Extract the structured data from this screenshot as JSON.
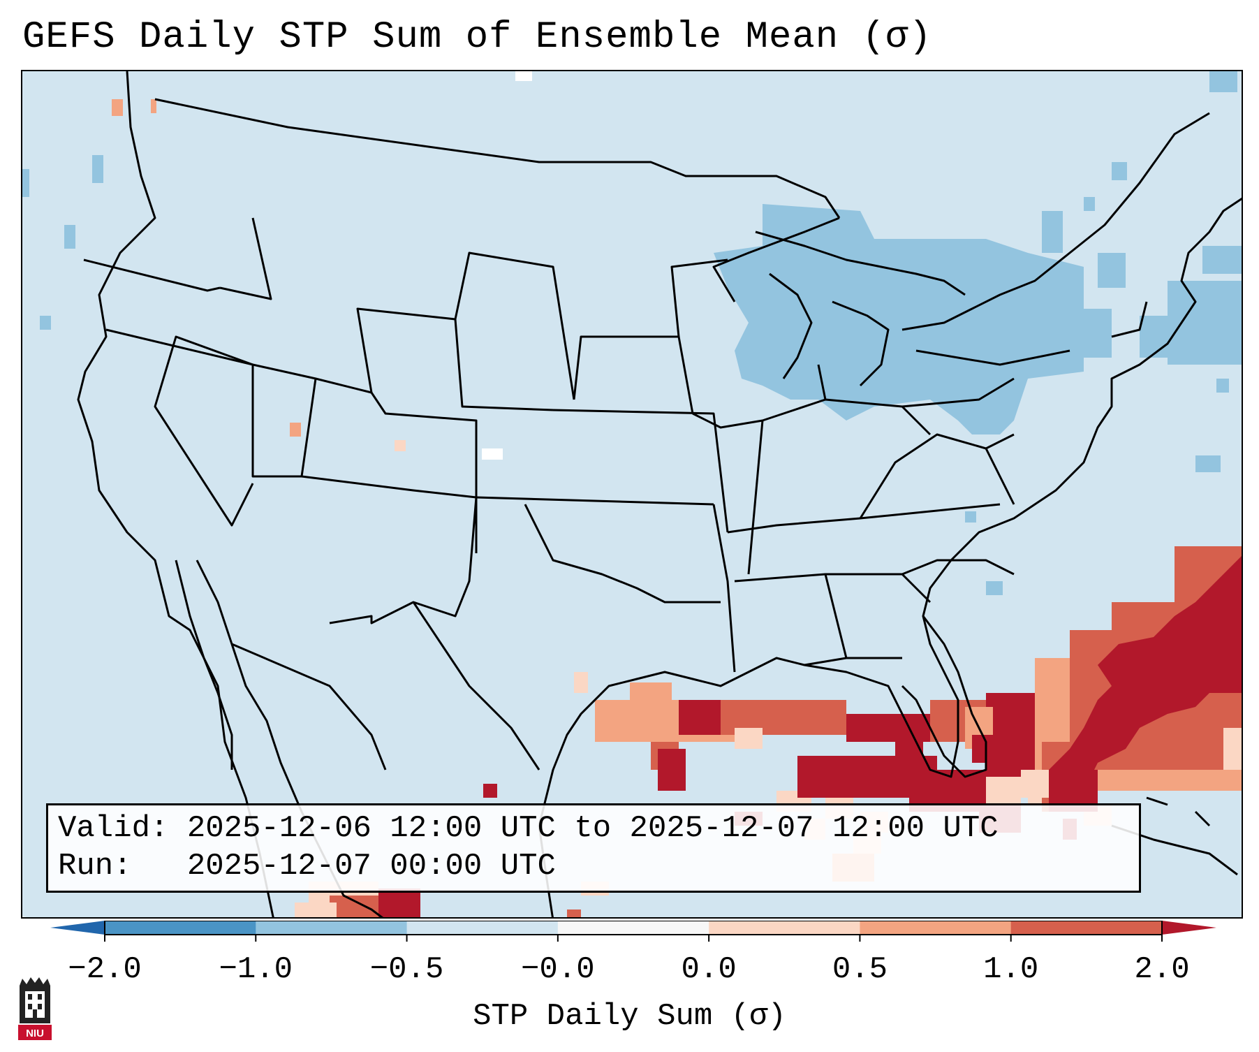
{
  "title": "GEFS Daily STP Sum of Ensemble Mean (σ)",
  "info": {
    "valid_label": "Valid:",
    "valid_value": "2025-12-06 12:00 UTC to 2025-12-07 12:00 UTC",
    "run_label": "Run:",
    "run_value": "2025-12-07 00:00 UTC"
  },
  "colorbar": {
    "label": "STP Daily Sum (σ)",
    "ticks": [
      "−2.0",
      "−1.0",
      "−0.5",
      "−0.0",
      "0.0",
      "0.5",
      "1.0",
      "2.0"
    ],
    "bins": [
      {
        "from": -2.0,
        "to": -1.0,
        "color": "#4a94c5"
      },
      {
        "from": -1.0,
        "to": -0.5,
        "color": "#93c4df"
      },
      {
        "from": -0.5,
        "to": -0.0,
        "color": "#d2e5f0"
      },
      {
        "from": -0.0,
        "to": 0.0,
        "color": "#f7f7f7"
      },
      {
        "from": 0.0,
        "to": 0.5,
        "color": "#fbd7c4"
      },
      {
        "from": 0.5,
        "to": 1.0,
        "color": "#f3a481"
      },
      {
        "from": 1.0,
        "to": 2.0,
        "color": "#d6604d"
      }
    ],
    "under_color": "#2166ac",
    "over_color": "#b2182b"
  },
  "map": {
    "projection": "lambert-conformal CONUS",
    "background_color": "#d2e5f0",
    "field_regions": [
      {
        "region": "great-lakes-northeast",
        "level": "-1.0 to -0.5",
        "color": "#93c4df"
      },
      {
        "region": "gulf-of-mexico",
        "level": "above 2.0",
        "color": "#b2182b"
      },
      {
        "region": "western-atlantic",
        "level": "above 2.0",
        "color": "#b2182b"
      }
    ]
  },
  "logo": {
    "text": "NIU"
  }
}
